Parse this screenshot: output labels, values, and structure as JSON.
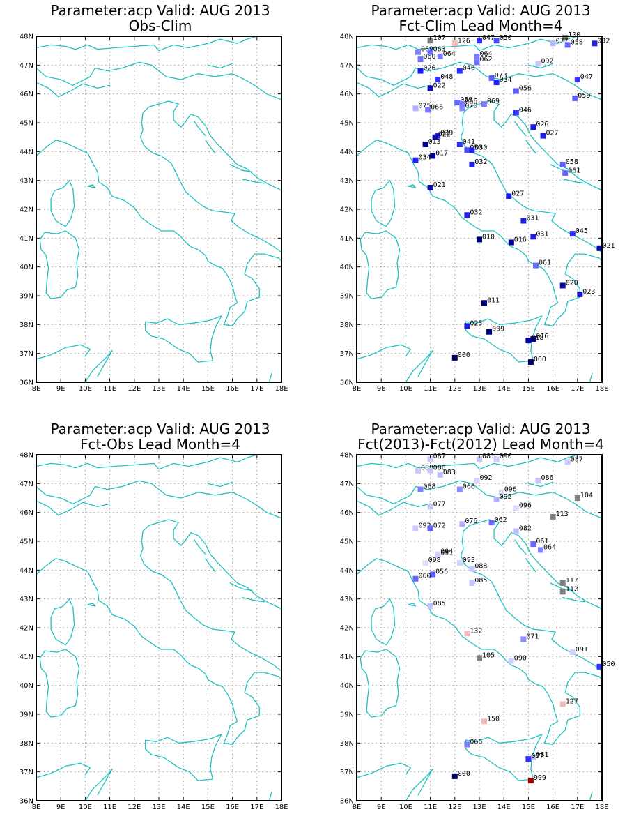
{
  "panels": [
    {
      "title1": "Parameter:acp Valid: AUG 2013",
      "title2": "Obs-Clim",
      "stations": []
    },
    {
      "title1": "Parameter:acp Valid: AUG 2013",
      "title2": "Fct-Clim Lead Month=4",
      "stations": [
        {
          "lon": 11.0,
          "lat": 47.85,
          "label": "107",
          "color": "#808080"
        },
        {
          "lon": 12.0,
          "lat": 47.75,
          "label": "126",
          "color": "#f4b8b8"
        },
        {
          "lon": 13.0,
          "lat": 47.85,
          "label": "047",
          "color": "#3333ff"
        },
        {
          "lon": 13.7,
          "lat": 47.85,
          "label": "050",
          "color": "#4d4dff"
        },
        {
          "lon": 16.5,
          "lat": 47.95,
          "label": "100",
          "color": "#808080"
        },
        {
          "lon": 16.0,
          "lat": 47.75,
          "label": "077",
          "color": "#b3b3ff"
        },
        {
          "lon": 16.6,
          "lat": 47.7,
          "label": "058",
          "color": "#6060ff"
        },
        {
          "lon": 17.7,
          "lat": 47.75,
          "label": "032",
          "color": "#2020e0"
        },
        {
          "lon": 10.5,
          "lat": 47.45,
          "label": "069",
          "color": "#8080ff"
        },
        {
          "lon": 11.0,
          "lat": 47.45,
          "label": "063",
          "color": "#6a6aff"
        },
        {
          "lon": 10.6,
          "lat": 47.2,
          "label": "060",
          "color": "#7070ff"
        },
        {
          "lon": 11.4,
          "lat": 47.3,
          "label": "064",
          "color": "#7a7aff"
        },
        {
          "lon": 12.9,
          "lat": 47.3,
          "label": "064",
          "color": "#7a7aff"
        },
        {
          "lon": 12.9,
          "lat": 47.1,
          "label": "062",
          "color": "#7070ff"
        },
        {
          "lon": 15.4,
          "lat": 47.05,
          "label": "092",
          "color": "#c8c8ff"
        },
        {
          "lon": 10.6,
          "lat": 46.8,
          "label": "026",
          "color": "#1a1ae6"
        },
        {
          "lon": 12.2,
          "lat": 46.8,
          "label": "046",
          "color": "#3030ff"
        },
        {
          "lon": 11.3,
          "lat": 46.5,
          "label": "048",
          "color": "#3535ff"
        },
        {
          "lon": 13.5,
          "lat": 46.55,
          "label": "073",
          "color": "#6060ff"
        },
        {
          "lon": 13.7,
          "lat": 46.4,
          "label": "034",
          "color": "#2424f0"
        },
        {
          "lon": 17.0,
          "lat": 46.5,
          "label": "047",
          "color": "#3333ff"
        },
        {
          "lon": 11.0,
          "lat": 46.2,
          "label": "022",
          "color": "#1010b0"
        },
        {
          "lon": 14.5,
          "lat": 46.1,
          "label": "056",
          "color": "#5a5aff"
        },
        {
          "lon": 16.9,
          "lat": 45.85,
          "label": "059",
          "color": "#6060ff"
        },
        {
          "lon": 12.1,
          "lat": 45.7,
          "label": "059",
          "color": "#6060ff"
        },
        {
          "lon": 12.3,
          "lat": 45.65,
          "label": "066",
          "color": "#7a7aff"
        },
        {
          "lon": 13.2,
          "lat": 45.65,
          "label": "069",
          "color": "#8080ff"
        },
        {
          "lon": 12.3,
          "lat": 45.5,
          "label": "070",
          "color": "#8585ff"
        },
        {
          "lon": 10.4,
          "lat": 45.5,
          "label": "075",
          "color": "#b3b3ff"
        },
        {
          "lon": 10.9,
          "lat": 45.45,
          "label": "066",
          "color": "#7a7aff"
        },
        {
          "lon": 14.5,
          "lat": 45.35,
          "label": "046",
          "color": "#3030ff"
        },
        {
          "lon": 15.2,
          "lat": 44.85,
          "label": "026",
          "color": "#1a1ae6"
        },
        {
          "lon": 15.6,
          "lat": 44.55,
          "label": "027",
          "color": "#1c1ce8"
        },
        {
          "lon": 11.3,
          "lat": 44.55,
          "label": "039",
          "color": "#2a2af0"
        },
        {
          "lon": 11.2,
          "lat": 44.5,
          "label": "022",
          "color": "#1010b0"
        },
        {
          "lon": 10.8,
          "lat": 44.25,
          "label": "013",
          "color": "#00008b"
        },
        {
          "lon": 12.2,
          "lat": 44.25,
          "label": "041",
          "color": "#2c2cf2"
        },
        {
          "lon": 12.5,
          "lat": 44.05,
          "label": "050",
          "color": "#4d4dff"
        },
        {
          "lon": 12.7,
          "lat": 44.05,
          "label": "030",
          "color": "#2020e8"
        },
        {
          "lon": 11.1,
          "lat": 43.85,
          "label": "017",
          "color": "#000090"
        },
        {
          "lon": 10.4,
          "lat": 43.7,
          "label": "034",
          "color": "#2424f0"
        },
        {
          "lon": 12.7,
          "lat": 43.55,
          "label": "032",
          "color": "#2020e0"
        },
        {
          "lon": 16.4,
          "lat": 43.55,
          "label": "058",
          "color": "#6060ff"
        },
        {
          "lon": 16.5,
          "lat": 43.25,
          "label": "061",
          "color": "#6a6aff"
        },
        {
          "lon": 11.0,
          "lat": 42.75,
          "label": "021",
          "color": "#0c0ca0"
        },
        {
          "lon": 14.2,
          "lat": 42.45,
          "label": "027",
          "color": "#1c1ce8"
        },
        {
          "lon": 12.5,
          "lat": 41.8,
          "label": "032",
          "color": "#2020e0"
        },
        {
          "lon": 14.8,
          "lat": 41.6,
          "label": "031",
          "color": "#2020e0"
        },
        {
          "lon": 16.8,
          "lat": 41.15,
          "label": "045",
          "color": "#2e2ef5"
        },
        {
          "lon": 15.2,
          "lat": 41.05,
          "label": "031",
          "color": "#2020e0"
        },
        {
          "lon": 13.0,
          "lat": 40.95,
          "label": "010",
          "color": "#000080"
        },
        {
          "lon": 14.3,
          "lat": 40.85,
          "label": "016",
          "color": "#000090"
        },
        {
          "lon": 17.9,
          "lat": 40.65,
          "label": "021",
          "color": "#0c0ca0"
        },
        {
          "lon": 15.3,
          "lat": 40.05,
          "label": "061",
          "color": "#6a6aff"
        },
        {
          "lon": 16.4,
          "lat": 39.35,
          "label": "020",
          "color": "#0a0a9a"
        },
        {
          "lon": 17.1,
          "lat": 39.05,
          "label": "023",
          "color": "#1212b8"
        },
        {
          "lon": 13.2,
          "lat": 38.75,
          "label": "011",
          "color": "#000085"
        },
        {
          "lon": 12.5,
          "lat": 37.95,
          "label": "025",
          "color": "#1818e0"
        },
        {
          "lon": 13.4,
          "lat": 37.75,
          "label": "009",
          "color": "#00007a"
        },
        {
          "lon": 15.2,
          "lat": 37.5,
          "label": "016",
          "color": "#000090"
        },
        {
          "lon": 15.0,
          "lat": 37.45,
          "label": "018",
          "color": "#00009a"
        },
        {
          "lon": 12.0,
          "lat": 36.85,
          "label": "000",
          "color": "#000066"
        },
        {
          "lon": 15.1,
          "lat": 36.7,
          "label": "000",
          "color": "#000066"
        }
      ]
    },
    {
      "title1": "Parameter:acp Valid: AUG 2013",
      "title2": "Fct-Obs Lead Month=4",
      "stations": []
    },
    {
      "title1": "Parameter:acp Valid: AUG 2013",
      "title2": "Fct(2013)-Fct(2012) Lead Month=4",
      "stations": [
        {
          "lon": 11.0,
          "lat": 47.85,
          "label": "087",
          "color": "#c8c8ff"
        },
        {
          "lon": 13.0,
          "lat": 47.85,
          "label": "081",
          "color": "#c0c0ff"
        },
        {
          "lon": 13.7,
          "lat": 47.85,
          "label": "090",
          "color": "#d0d0ff"
        },
        {
          "lon": 16.6,
          "lat": 47.75,
          "label": "087",
          "color": "#c8c8ff"
        },
        {
          "lon": 10.5,
          "lat": 47.45,
          "label": "088",
          "color": "#c8c8ff"
        },
        {
          "lon": 11.0,
          "lat": 47.45,
          "label": "086",
          "color": "#c4c4ff"
        },
        {
          "lon": 11.4,
          "lat": 47.3,
          "label": "083",
          "color": "#c0c0ff"
        },
        {
          "lon": 12.9,
          "lat": 47.1,
          "label": "092",
          "color": "#d4d4ff"
        },
        {
          "lon": 15.4,
          "lat": 47.1,
          "label": "086",
          "color": "#c4c4ff"
        },
        {
          "lon": 10.6,
          "lat": 46.8,
          "label": "068",
          "color": "#7a7aff"
        },
        {
          "lon": 12.2,
          "lat": 46.8,
          "label": "066",
          "color": "#8a8aff"
        },
        {
          "lon": 13.9,
          "lat": 46.7,
          "label": "096",
          "color": "#dadaff"
        },
        {
          "lon": 17.0,
          "lat": 46.5,
          "label": "104",
          "color": "#808080"
        },
        {
          "lon": 13.7,
          "lat": 46.45,
          "label": "092",
          "color": "#b0b0ff"
        },
        {
          "lon": 11.0,
          "lat": 46.2,
          "label": "077",
          "color": "#c8c8ff"
        },
        {
          "lon": 14.5,
          "lat": 46.15,
          "label": "096",
          "color": "#dadaff"
        },
        {
          "lon": 16.0,
          "lat": 45.85,
          "label": "113",
          "color": "#808080"
        },
        {
          "lon": 13.5,
          "lat": 45.65,
          "label": "062",
          "color": "#6a6aff"
        },
        {
          "lon": 12.3,
          "lat": 45.6,
          "label": "076",
          "color": "#b0b0ff"
        },
        {
          "lon": 10.4,
          "lat": 45.45,
          "label": "092",
          "color": "#c8c8ff"
        },
        {
          "lon": 11.0,
          "lat": 45.45,
          "label": "072",
          "color": "#6060ff"
        },
        {
          "lon": 14.5,
          "lat": 45.35,
          "label": "082",
          "color": "#c0c0ff"
        },
        {
          "lon": 15.2,
          "lat": 44.9,
          "label": "061",
          "color": "#6a6aff"
        },
        {
          "lon": 15.5,
          "lat": 44.7,
          "label": "064",
          "color": "#8080ff"
        },
        {
          "lon": 11.3,
          "lat": 44.55,
          "label": "094",
          "color": "#d6d6ff"
        },
        {
          "lon": 11.3,
          "lat": 44.5,
          "label": "091",
          "color": "#d2d2ff"
        },
        {
          "lon": 10.8,
          "lat": 44.25,
          "label": "098",
          "color": "#dcdcff"
        },
        {
          "lon": 12.2,
          "lat": 44.25,
          "label": "093",
          "color": "#d4d4ff"
        },
        {
          "lon": 12.7,
          "lat": 44.05,
          "label": "088",
          "color": "#c8c8ff"
        },
        {
          "lon": 11.1,
          "lat": 43.85,
          "label": "056",
          "color": "#6060ff"
        },
        {
          "lon": 10.4,
          "lat": 43.7,
          "label": "060",
          "color": "#6a6aff"
        },
        {
          "lon": 12.7,
          "lat": 43.55,
          "label": "085",
          "color": "#c4c4ff"
        },
        {
          "lon": 16.4,
          "lat": 43.55,
          "label": "117",
          "color": "#808080"
        },
        {
          "lon": 16.4,
          "lat": 43.25,
          "label": "112",
          "color": "#808080"
        },
        {
          "lon": 11.0,
          "lat": 42.75,
          "label": "085",
          "color": "#c4c4ff"
        },
        {
          "lon": 12.5,
          "lat": 41.8,
          "label": "132",
          "color": "#f4b8b8"
        },
        {
          "lon": 14.8,
          "lat": 41.6,
          "label": "071",
          "color": "#8888ff"
        },
        {
          "lon": 16.8,
          "lat": 41.15,
          "label": "091",
          "color": "#d2d2ff"
        },
        {
          "lon": 13.0,
          "lat": 40.95,
          "label": "105",
          "color": "#808080"
        },
        {
          "lon": 14.3,
          "lat": 40.85,
          "label": "090",
          "color": "#d0d0ff"
        },
        {
          "lon": 17.9,
          "lat": 40.65,
          "label": "050",
          "color": "#3535ff"
        },
        {
          "lon": 16.4,
          "lat": 39.35,
          "label": "127",
          "color": "#f4b8b8"
        },
        {
          "lon": 13.2,
          "lat": 38.75,
          "label": "150",
          "color": "#f4b8b8"
        },
        {
          "lon": 12.5,
          "lat": 37.95,
          "label": "066",
          "color": "#7a7aff"
        },
        {
          "lon": 15.2,
          "lat": 37.5,
          "label": "081",
          "color": "#c0c0ff"
        },
        {
          "lon": 15.0,
          "lat": 37.45,
          "label": "057",
          "color": "#3030ff"
        },
        {
          "lon": 12.0,
          "lat": 36.85,
          "label": "000",
          "color": "#000066"
        },
        {
          "lon": 15.1,
          "lat": 36.7,
          "label": "999",
          "color": "#a00000"
        }
      ]
    }
  ],
  "axes": {
    "lon_labels": [
      "8E",
      "9E",
      "10E",
      "11E",
      "12E",
      "13E",
      "14E",
      "15E",
      "16E",
      "17E",
      "18E"
    ],
    "lat_labels": [
      "36N",
      "37N",
      "38N",
      "39N",
      "40N",
      "41N",
      "42N",
      "43N",
      "44N",
      "45N",
      "46N",
      "47N",
      "48N"
    ]
  },
  "colors": {
    "coastline": "#20c0c0",
    "grid": "#9a9a9a",
    "frame": "#000000"
  }
}
